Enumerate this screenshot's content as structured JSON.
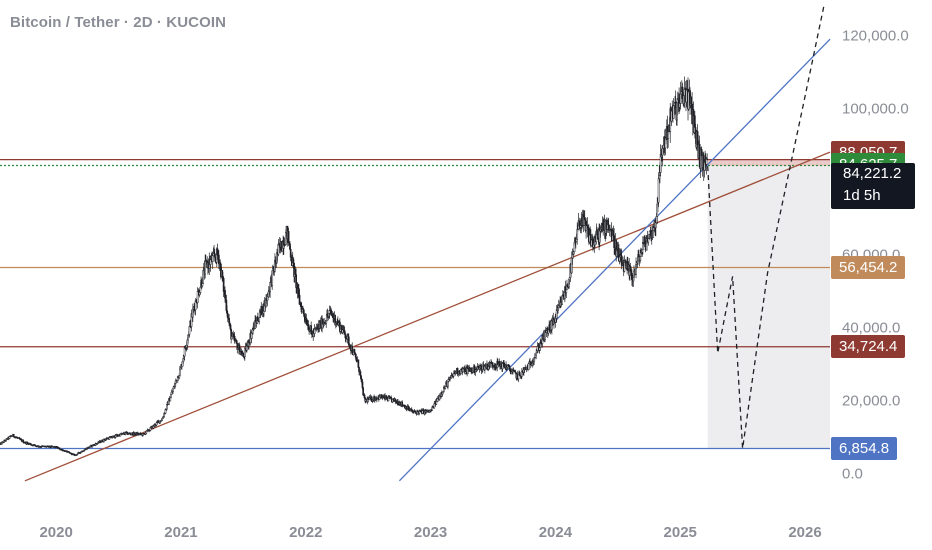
{
  "header": {
    "title": "Bitcoin / Tether · 2D · KUCOIN"
  },
  "colors": {
    "candle": "#1f2026",
    "red_level": "#8e3a32",
    "green_level": "#2e8b3a",
    "orange_level": "#c08a5a",
    "blue_line": "#4f74c4",
    "trend_red": "#a0503a",
    "current_bg": "#131722",
    "zone_red": "#e2b3b3",
    "zone_grey": "#ebebed"
  },
  "chart_data": {
    "type": "candlestick",
    "title": "Bitcoin / Tether · 2D · KUCOIN",
    "xlim": [
      2019.55,
      2026.2
    ],
    "ylim": [
      -10000,
      127000
    ],
    "x_ticks": [
      "2020",
      "2021",
      "2022",
      "2023",
      "2024",
      "2025",
      "2026"
    ],
    "y_ticks": [
      "120,000.0",
      "100,000.0",
      "60,000.0",
      "40,000.0",
      "20,000.0",
      "0.0"
    ],
    "series": [
      {
        "price_path": [
          [
            2019.55,
            8000
          ],
          [
            2019.65,
            10500
          ],
          [
            2019.75,
            8500
          ],
          [
            2019.85,
            7500
          ],
          [
            2020.0,
            7200
          ],
          [
            2020.15,
            5000
          ],
          [
            2020.25,
            7000
          ],
          [
            2020.4,
            9500
          ],
          [
            2020.55,
            11000
          ],
          [
            2020.7,
            10700
          ],
          [
            2020.85,
            15000
          ],
          [
            2021.0,
            29000
          ],
          [
            2021.1,
            45000
          ],
          [
            2021.2,
            57000
          ],
          [
            2021.3,
            60000
          ],
          [
            2021.4,
            38000
          ],
          [
            2021.5,
            32000
          ],
          [
            2021.58,
            40000
          ],
          [
            2021.68,
            47000
          ],
          [
            2021.78,
            61000
          ],
          [
            2021.85,
            66000
          ],
          [
            2021.95,
            47000
          ],
          [
            2022.05,
            38000
          ],
          [
            2022.2,
            44000
          ],
          [
            2022.32,
            38000
          ],
          [
            2022.42,
            30000
          ],
          [
            2022.47,
            20000
          ],
          [
            2022.6,
            21000
          ],
          [
            2022.75,
            19500
          ],
          [
            2022.86,
            16800
          ],
          [
            2023.0,
            17000
          ],
          [
            2023.1,
            23000
          ],
          [
            2023.2,
            28000
          ],
          [
            2023.35,
            28500
          ],
          [
            2023.5,
            30000
          ],
          [
            2023.6,
            29500
          ],
          [
            2023.7,
            26500
          ],
          [
            2023.8,
            30000
          ],
          [
            2023.9,
            37000
          ],
          [
            2024.0,
            42500
          ],
          [
            2024.1,
            52000
          ],
          [
            2024.2,
            70000
          ],
          [
            2024.3,
            63000
          ],
          [
            2024.42,
            69000
          ],
          [
            2024.52,
            58000
          ],
          [
            2024.62,
            54000
          ],
          [
            2024.7,
            62000
          ],
          [
            2024.8,
            68000
          ],
          [
            2024.85,
            88000
          ],
          [
            2024.93,
            98000
          ],
          [
            2025.0,
            102000
          ],
          [
            2025.05,
            105000
          ],
          [
            2025.1,
            98000
          ],
          [
            2025.16,
            86000
          ],
          [
            2025.22,
            84221
          ]
        ]
      }
    ],
    "projection_path": [
      [
        2025.22,
        84221
      ],
      [
        2025.3,
        33000
      ],
      [
        2025.42,
        54000
      ],
      [
        2025.5,
        6854.8
      ],
      [
        2025.7,
        55000
      ],
      [
        2025.98,
        100000
      ],
      [
        2026.15,
        128000
      ]
    ],
    "trend_lines": [
      {
        "from": [
          2019.75,
          -2000
        ],
        "to": [
          2026.2,
          88050.7
        ],
        "color": "trend_red"
      },
      {
        "from": [
          2022.75,
          -2000
        ],
        "to": [
          2026.2,
          119000
        ],
        "color": "blue_line"
      }
    ],
    "horizontal_levels": [
      {
        "value": 88050.7,
        "label": "88,050.7",
        "color": "red_level",
        "chart_y": 86000
      },
      {
        "value": 84625.7,
        "label": "84,625.7",
        "color": "green_level",
        "chart_y": 84400,
        "dotted": true
      },
      {
        "value": 56454.2,
        "label": "56,454.2",
        "color": "orange_level",
        "chart_y": 56454.2
      },
      {
        "value": 34724.4,
        "label": "34,724.4",
        "color": "red_level",
        "chart_y": 34724.4
      },
      {
        "value": 6854.8,
        "label": "6,854.8",
        "color": "blue_line",
        "chart_y": 6854.8
      }
    ],
    "current_price": {
      "value": 84221.2,
      "label": "84,221.2",
      "countdown": "1d 5h"
    },
    "zones": [
      {
        "x": [
          2025.22,
          2026.2
        ],
        "y": [
          84221,
          86000
        ],
        "color": "zone_red"
      },
      {
        "x": [
          2025.22,
          2026.2
        ],
        "y": [
          6854.8,
          84221
        ],
        "color": "zone_grey"
      }
    ]
  }
}
